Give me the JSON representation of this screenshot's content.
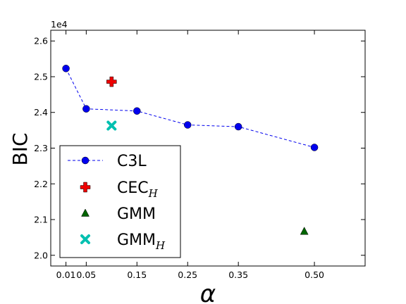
{
  "chart_data": {
    "type": "scatter",
    "xlabel": "α",
    "ylabel": "BIC",
    "multiplier_label": "1e4",
    "xlim": [
      -0.02,
      0.6
    ],
    "ylim": [
      1.97,
      2.63
    ],
    "xticks": [
      0.01,
      0.05,
      0.15,
      0.25,
      0.35,
      0.5
    ],
    "xtick_labels": [
      "0.01",
      "0.05",
      "0.15",
      "0.25",
      "0.35",
      "0.50"
    ],
    "yticks": [
      2.0,
      2.1,
      2.2,
      2.3,
      2.4,
      2.5,
      2.6
    ],
    "ytick_labels": [
      "2.0",
      "2.1",
      "2.2",
      "2.3",
      "2.4",
      "2.5",
      "2.6"
    ],
    "grid": false,
    "legend_position": "lower-left",
    "series": [
      {
        "name": "C3L",
        "name_sub": "",
        "marker": "circle",
        "color": "#0000ee",
        "line": "dashed",
        "x": [
          0.01,
          0.05,
          0.15,
          0.25,
          0.35,
          0.5
        ],
        "y": [
          2.523,
          2.41,
          2.404,
          2.365,
          2.36,
          2.302
        ]
      },
      {
        "name": "CEC",
        "name_sub": "H",
        "marker": "plus",
        "color": "#ee0000",
        "line": "none",
        "x": [
          0.1
        ],
        "y": [
          2.486
        ]
      },
      {
        "name": "GMM",
        "name_sub": "",
        "marker": "triangle",
        "color": "#006400",
        "line": "none",
        "x": [
          0.48
        ],
        "y": [
          2.067
        ]
      },
      {
        "name": "GMM",
        "name_sub": "H",
        "marker": "x",
        "color": "#00c0b0",
        "line": "none",
        "x": [
          0.1
        ],
        "y": [
          2.363
        ]
      }
    ]
  }
}
